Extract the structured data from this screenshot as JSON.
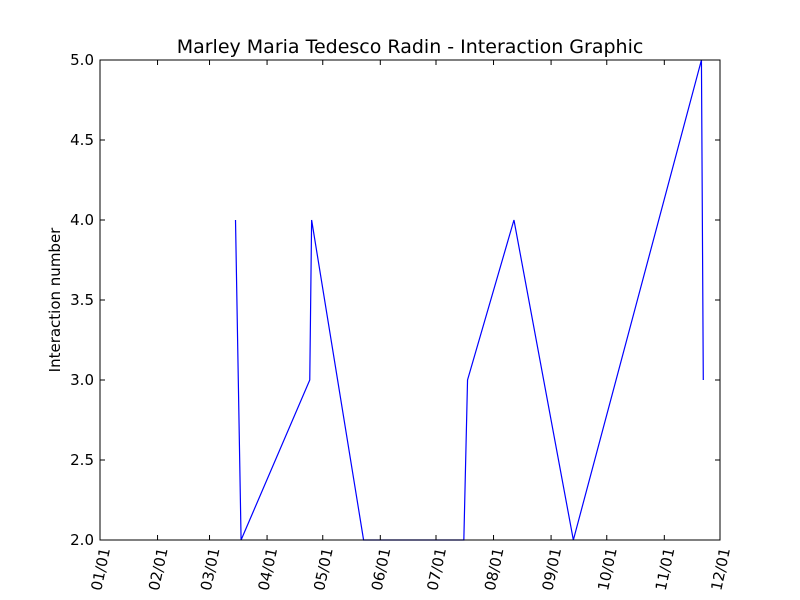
{
  "chart_data": {
    "type": "line",
    "title": "Marley Maria Tedesco Radin - Interaction Graphic",
    "xlabel": "",
    "ylabel": "Interaction number",
    "x_ticks": [
      "01/01",
      "02/01",
      "03/01",
      "04/01",
      "05/01",
      "06/01",
      "07/01",
      "08/01",
      "09/01",
      "10/01",
      "11/01",
      "12/01"
    ],
    "y_ticks": [
      "2.0",
      "2.5",
      "3.0",
      "3.5",
      "4.0",
      "4.5",
      "5.0"
    ],
    "ylim": [
      2.0,
      5.0
    ],
    "xlim": [
      "01/01",
      "12/01"
    ],
    "grid": false,
    "line_color": "#0000ff",
    "series": [
      {
        "points": [
          {
            "x": "03/15",
            "y": 4.0
          },
          {
            "x": "03/18",
            "y": 2.0
          },
          {
            "x": "04/24",
            "y": 3.0
          },
          {
            "x": "04/25",
            "y": 4.0
          },
          {
            "x": "05/23",
            "y": 2.0
          },
          {
            "x": "06/10",
            "y": 2.0
          },
          {
            "x": "07/16",
            "y": 2.0
          },
          {
            "x": "07/18",
            "y": 3.0
          },
          {
            "x": "08/12",
            "y": 4.0
          },
          {
            "x": "09/13",
            "y": 2.0
          },
          {
            "x": "11/21",
            "y": 5.0
          },
          {
            "x": "11/22",
            "y": 3.0
          }
        ]
      }
    ]
  }
}
